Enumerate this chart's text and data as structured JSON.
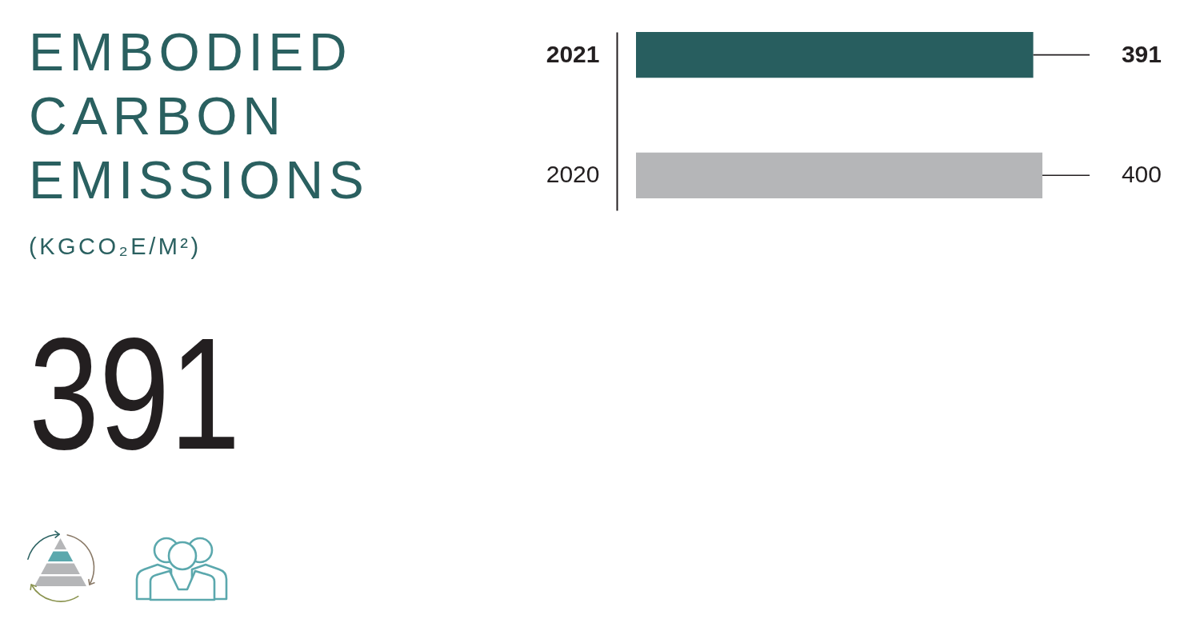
{
  "chart_data": [
    {
      "type": "other",
      "title": "EMBODIED CARBON EMISSIONS",
      "subtitle": "(KGCO₂E/M²)",
      "annotations": [
        "391"
      ]
    },
    {
      "type": "bar",
      "orientation": "horizontal",
      "categories": [
        "2021",
        "2020"
      ],
      "values": [
        391,
        400
      ],
      "colors": [
        "#285e5f",
        "#b5b6b8"
      ],
      "data_labels": true
    }
  ]
}
